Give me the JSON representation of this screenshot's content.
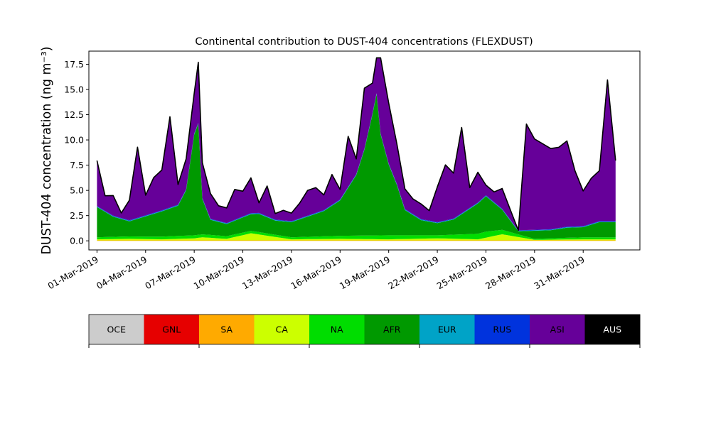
{
  "chart_data": {
    "type": "area",
    "stacked": true,
    "title": "Continental contribution to DUST-404 concentrations (FLEXDUST)",
    "xlabel": "",
    "ylabel": "DUST-404 concentration (ng m⁻³)",
    "x_start": "2019-02-28T12:00",
    "x_end": "2019-04-03T12:00",
    "ylim": [
      -0.9,
      18.8
    ],
    "y_ticks": [
      "0.0",
      "2.5",
      "5.0",
      "7.5",
      "10.0",
      "12.5",
      "15.0",
      "17.5"
    ],
    "x_ticks": [
      "01-Mar-2019",
      "04-Mar-2019",
      "07-Mar-2019",
      "10-Mar-2019",
      "13-Mar-2019",
      "16-Mar-2019",
      "19-Mar-2019",
      "22-Mar-2019",
      "25-Mar-2019",
      "28-Mar-2019",
      "31-Mar-2019"
    ],
    "grid": false,
    "total_line_color": "#000000",
    "series": [
      {
        "name": "OCE",
        "color": "#cccccc",
        "dates": [
          "2019-03-01",
          "2019-04-02"
        ],
        "values": [
          0.0,
          0.0
        ]
      },
      {
        "name": "GNL",
        "color": "#e60000",
        "dates": [
          "2019-03-01",
          "2019-04-02"
        ],
        "values": [
          0.0,
          0.0
        ]
      },
      {
        "name": "SA",
        "color": "#ffaa00",
        "dates": [
          "2019-03-01",
          "2019-04-02"
        ],
        "values": [
          0.05,
          0.05
        ]
      },
      {
        "name": "CA",
        "color": "#ccff00",
        "dates": [
          "2019-03-01",
          "2019-03-03",
          "2019-03-05",
          "2019-03-07",
          "2019-03-07T12:00",
          "2019-03-09",
          "2019-03-10T12:00",
          "2019-03-13",
          "2019-03-16",
          "2019-03-19",
          "2019-03-22",
          "2019-03-24T12:00",
          "2019-03-26",
          "2019-03-28",
          "2019-03-31",
          "2019-04-02"
        ],
        "values": [
          0.1,
          0.15,
          0.1,
          0.2,
          0.3,
          0.15,
          0.7,
          0.1,
          0.15,
          0.1,
          0.2,
          0.1,
          0.6,
          0.05,
          0.1,
          0.1
        ]
      },
      {
        "name": "NA",
        "color": "#00dd00",
        "dates": [
          "2019-03-01",
          "2019-03-07",
          "2019-03-13",
          "2019-03-16",
          "2019-03-19",
          "2019-03-22",
          "2019-03-25",
          "2019-03-28",
          "2019-03-31",
          "2019-04-02"
        ],
        "values": [
          0.2,
          0.3,
          0.2,
          0.3,
          0.4,
          0.3,
          0.6,
          0.1,
          0.2,
          0.2
        ]
      },
      {
        "name": "AFR",
        "color": "#009900",
        "dates": [
          "2019-03-01",
          "2019-03-01T12:00",
          "2019-03-02",
          "2019-03-03",
          "2019-03-04",
          "2019-03-05",
          "2019-03-06",
          "2019-03-06T12:00",
          "2019-03-07",
          "2019-03-07T06:00",
          "2019-03-07T12:00",
          "2019-03-08",
          "2019-03-09",
          "2019-03-10",
          "2019-03-11",
          "2019-03-12",
          "2019-03-13",
          "2019-03-14",
          "2019-03-15",
          "2019-03-16",
          "2019-03-17",
          "2019-03-17T12:00",
          "2019-03-18",
          "2019-03-18T06:00",
          "2019-03-18T12:00",
          "2019-03-19",
          "2019-03-19T12:00",
          "2019-03-20",
          "2019-03-21",
          "2019-03-22",
          "2019-03-23",
          "2019-03-24",
          "2019-03-25",
          "2019-03-26",
          "2019-03-27",
          "2019-03-28",
          "2019-03-29",
          "2019-03-30",
          "2019-03-31",
          "2019-04-01",
          "2019-04-02"
        ],
        "values": [
          3.0,
          2.5,
          2.0,
          1.5,
          2.0,
          2.5,
          3.0,
          4.5,
          10.0,
          11.0,
          3.5,
          1.5,
          1.2,
          1.5,
          1.8,
          1.4,
          1.5,
          2.0,
          2.5,
          3.5,
          6.0,
          8.5,
          12.0,
          14.0,
          10.0,
          7.0,
          5.0,
          2.5,
          1.5,
          1.2,
          1.5,
          2.5,
          3.5,
          2.0,
          0.3,
          0.8,
          0.8,
          1.0,
          1.0,
          1.5,
          1.5
        ]
      },
      {
        "name": "EUR",
        "color": "#00a3c7",
        "dates": [
          "2019-03-01",
          "2019-04-02"
        ],
        "values": [
          0.05,
          0.05
        ]
      },
      {
        "name": "RUS",
        "color": "#0033dd",
        "dates": [
          "2019-03-01",
          "2019-04-02"
        ],
        "values": [
          0.05,
          0.05
        ]
      },
      {
        "name": "ASI",
        "color": "#660099",
        "dates": [
          "2019-03-01",
          "2019-03-01T12:00",
          "2019-03-02",
          "2019-03-02T12:00",
          "2019-03-03",
          "2019-03-03T12:00",
          "2019-03-04",
          "2019-03-04T12:00",
          "2019-03-05",
          "2019-03-05T12:00",
          "2019-03-06",
          "2019-03-06T12:00",
          "2019-03-07",
          "2019-03-07T06:00",
          "2019-03-07T12:00",
          "2019-03-08",
          "2019-03-08T12:00",
          "2019-03-09",
          "2019-03-09T12:00",
          "2019-03-10",
          "2019-03-10T12:00",
          "2019-03-11",
          "2019-03-11T12:00",
          "2019-03-12",
          "2019-03-12T12:00",
          "2019-03-13",
          "2019-03-13T12:00",
          "2019-03-14",
          "2019-03-14T12:00",
          "2019-03-15",
          "2019-03-15T12:00",
          "2019-03-16",
          "2019-03-16T12:00",
          "2019-03-17",
          "2019-03-17T12:00",
          "2019-03-18",
          "2019-03-18T06:00",
          "2019-03-18T12:00",
          "2019-03-19",
          "2019-03-19T12:00",
          "2019-03-20",
          "2019-03-20T12:00",
          "2019-03-21",
          "2019-03-21T12:00",
          "2019-03-22",
          "2019-03-22T12:00",
          "2019-03-23",
          "2019-03-23T12:00",
          "2019-03-24",
          "2019-03-24T12:00",
          "2019-03-25",
          "2019-03-25T12:00",
          "2019-03-26",
          "2019-03-26T12:00",
          "2019-03-27",
          "2019-03-27T12:00",
          "2019-03-28",
          "2019-03-28T12:00",
          "2019-03-29",
          "2019-03-29T12:00",
          "2019-03-30",
          "2019-03-30T12:00",
          "2019-03-31",
          "2019-03-31T12:00",
          "2019-04-01",
          "2019-04-01T12:00",
          "2019-04-02"
        ],
        "values": [
          4.5,
          1.5,
          2.0,
          0.5,
          2.0,
          7.0,
          2.0,
          3.5,
          4.0,
          9.0,
          2.0,
          3.0,
          4.0,
          6.0,
          3.5,
          2.5,
          1.5,
          1.5,
          3.0,
          2.5,
          3.5,
          1.0,
          3.0,
          0.6,
          1.0,
          0.8,
          1.5,
          2.5,
          2.5,
          1.5,
          3.0,
          1.0,
          5.0,
          1.5,
          6.0,
          3.0,
          3.5,
          7.5,
          6.0,
          4.0,
          2.0,
          1.5,
          1.5,
          1.0,
          3.5,
          5.5,
          4.5,
          8.5,
          2.0,
          3.0,
          1.0,
          1.0,
          2.0,
          1.0,
          0.0,
          10.5,
          9.0,
          8.5,
          8.0,
          8.0,
          8.5,
          5.5,
          3.5,
          4.5,
          5.0,
          14.0,
          6.0
        ]
      },
      {
        "name": "AUS",
        "color": "#000000",
        "dates": [
          "2019-03-01",
          "2019-04-02"
        ],
        "values": [
          0.0,
          0.0
        ]
      }
    ]
  }
}
